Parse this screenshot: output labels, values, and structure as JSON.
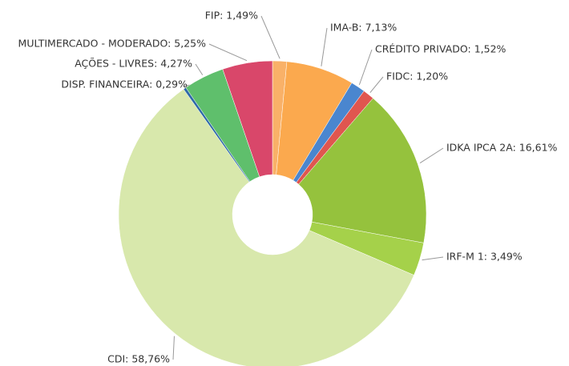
{
  "chart_data": {
    "type": "donut",
    "labels": [
      "FIP: 1,49%",
      "IMA-B: 7,13%",
      "CRÉDITO PRIVADO: 1,52%",
      "FIDC: 1,20%",
      "IDKA IPCA 2A: 16,61%",
      "IRF-M 1: 3,49%",
      "CDI: 58,76%",
      "DISP. FINANCEIRA: 0,29%",
      "AÇÕES - LIVRES: 4,27%",
      "MULTIMERCADO - MODERADO: 5,25%"
    ],
    "values": [
      1.49,
      7.13,
      1.52,
      1.2,
      16.61,
      3.49,
      58.76,
      0.29,
      4.27,
      5.25
    ],
    "colors": [
      "#f9b168",
      "#fba94e",
      "#4a86cf",
      "#e0564f",
      "#95c23d",
      "#a5d14a",
      "#d8e8ac",
      "#2f6aa8",
      "#5fbf6c",
      "#d9476a"
    ]
  }
}
